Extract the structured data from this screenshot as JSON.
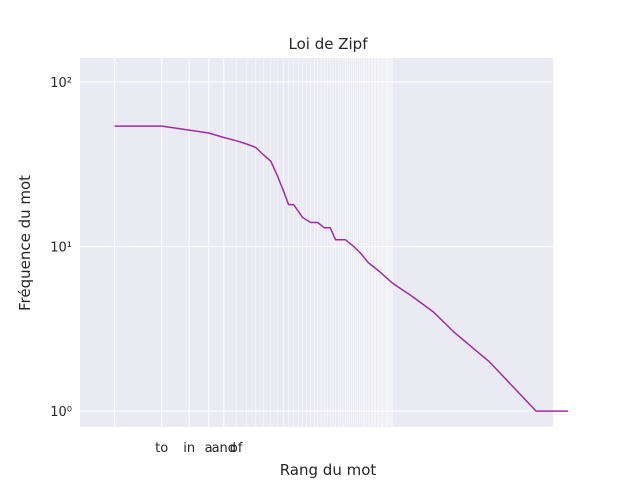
{
  "chart_data": {
    "type": "line",
    "title": "Loi de Zipf",
    "xlabel": "Rang du mot",
    "ylabel": "Fréquence du mot",
    "yscale": "log",
    "xscale": "log",
    "ylim": [
      0.8,
      140
    ],
    "xlim": [
      0.6,
      900
    ],
    "yticks": [
      1,
      10,
      100
    ],
    "ytick_labels": [
      "10⁰",
      "10¹",
      "10²"
    ],
    "x_tick_words": [
      "to",
      "in",
      "a",
      "and",
      "of"
    ],
    "grid": true,
    "colors": {
      "line": "#a02ca5",
      "background": "#eaeaf2",
      "grid": "#ffffff",
      "text": "#262626"
    },
    "series": [
      {
        "x": [
          1,
          2,
          3,
          4,
          5,
          6,
          7,
          8,
          9,
          10,
          11,
          12,
          13,
          14,
          16,
          18,
          20,
          22,
          24,
          26,
          30,
          34,
          38,
          42,
          50,
          60,
          80,
          110,
          150,
          250,
          500,
          800
        ],
        "y": [
          54,
          54,
          51,
          49,
          46,
          44,
          42,
          40,
          36,
          33,
          27,
          22,
          18,
          18,
          15,
          14,
          14,
          13,
          13,
          11,
          11,
          10,
          9,
          8,
          7,
          6,
          5,
          4,
          3,
          2,
          1,
          1
        ]
      }
    ]
  }
}
